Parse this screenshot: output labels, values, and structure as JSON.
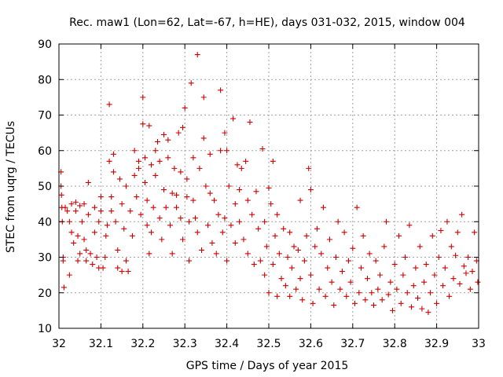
{
  "chart_data": {
    "type": "scatter",
    "title": "Rec. maw1 (Lon=62, Lat=-67, h=HE), days 031-032, 2015, window 004",
    "xlabel": "GPS time / Days of year 2015",
    "ylabel": "STEC from uqrg / TECUs",
    "xlim": [
      32,
      33
    ],
    "ylim": [
      10,
      90
    ],
    "xticks": [
      "32",
      "32.1",
      "32.2",
      "32.3",
      "32.4",
      "32.5",
      "32.6",
      "32.7",
      "32.8",
      "32.9",
      "33"
    ],
    "yticks": [
      "10",
      "20",
      "30",
      "40",
      "50",
      "60",
      "70",
      "80",
      "90"
    ],
    "grid": true,
    "marker": "+",
    "point_color": "#cc0000",
    "series": [
      {
        "name": "STEC",
        "points": [
          [
            32.005,
            54.0
          ],
          [
            32.005,
            50.0
          ],
          [
            32.006,
            47.5
          ],
          [
            32.007,
            44.0
          ],
          [
            32.008,
            40.0
          ],
          [
            32.01,
            30.0
          ],
          [
            32.01,
            29.0
          ],
          [
            32.012,
            21.5
          ],
          [
            32.015,
            44.0
          ],
          [
            32.02,
            43.0
          ],
          [
            32.025,
            40.0
          ],
          [
            32.025,
            25.0
          ],
          [
            32.03,
            45.0
          ],
          [
            32.03,
            37.0
          ],
          [
            32.035,
            34.0
          ],
          [
            32.04,
            45.5
          ],
          [
            32.04,
            43.0
          ],
          [
            32.045,
            36.0
          ],
          [
            32.045,
            29.0
          ],
          [
            32.05,
            44.5
          ],
          [
            32.05,
            31.0
          ],
          [
            32.055,
            40.0
          ],
          [
            32.06,
            45.0
          ],
          [
            32.06,
            35.0
          ],
          [
            32.065,
            32.0
          ],
          [
            32.065,
            29.0
          ],
          [
            32.07,
            51.0
          ],
          [
            32.07,
            42.0
          ],
          [
            32.075,
            31.0
          ],
          [
            32.08,
            28.0
          ],
          [
            32.085,
            44.0
          ],
          [
            32.085,
            37.0
          ],
          [
            32.09,
            30.0
          ],
          [
            32.095,
            40.0
          ],
          [
            32.095,
            27.0
          ],
          [
            32.1,
            47.0
          ],
          [
            32.1,
            43.0
          ],
          [
            32.105,
            27.0
          ],
          [
            32.11,
            30.0
          ],
          [
            32.112,
            36.0
          ],
          [
            32.115,
            39.0
          ],
          [
            32.12,
            73.0
          ],
          [
            32.12,
            57.0
          ],
          [
            32.125,
            47.0
          ],
          [
            32.125,
            43.0
          ],
          [
            32.13,
            59.0
          ],
          [
            32.13,
            54.0
          ],
          [
            32.135,
            40.0
          ],
          [
            32.14,
            32.0
          ],
          [
            32.14,
            27.0
          ],
          [
            32.145,
            52.0
          ],
          [
            32.15,
            45.0
          ],
          [
            32.15,
            26.0
          ],
          [
            32.155,
            38.0
          ],
          [
            32.16,
            50.0
          ],
          [
            32.16,
            29.0
          ],
          [
            32.165,
            26.0
          ],
          [
            32.17,
            43.0
          ],
          [
            32.175,
            36.0
          ],
          [
            32.18,
            60.0
          ],
          [
            32.18,
            53.0
          ],
          [
            32.185,
            47.0
          ],
          [
            32.19,
            57.0
          ],
          [
            32.19,
            55.0
          ],
          [
            32.195,
            42.0
          ],
          [
            32.2,
            67.5
          ],
          [
            32.2,
            75.0
          ],
          [
            32.205,
            58.0
          ],
          [
            32.205,
            51.0
          ],
          [
            32.21,
            46.0
          ],
          [
            32.21,
            39.0
          ],
          [
            32.215,
            67.0
          ],
          [
            32.215,
            31.0
          ],
          [
            32.22,
            56.0
          ],
          [
            32.22,
            37.0
          ],
          [
            32.225,
            44.0
          ],
          [
            32.23,
            60.0
          ],
          [
            32.23,
            53.0
          ],
          [
            32.235,
            62.5
          ],
          [
            32.24,
            57.0
          ],
          [
            32.24,
            41.0
          ],
          [
            32.245,
            35.0
          ],
          [
            32.25,
            64.5
          ],
          [
            32.25,
            49.0
          ],
          [
            32.255,
            44.0
          ],
          [
            32.26,
            63.0
          ],
          [
            32.26,
            58.0
          ],
          [
            32.265,
            39.0
          ],
          [
            32.27,
            48.0
          ],
          [
            32.27,
            31.0
          ],
          [
            32.275,
            55.0
          ],
          [
            32.28,
            47.5
          ],
          [
            32.28,
            44.0
          ],
          [
            32.285,
            65.0
          ],
          [
            32.29,
            54.0
          ],
          [
            32.29,
            41.0
          ],
          [
            32.295,
            66.5
          ],
          [
            32.295,
            35.0
          ],
          [
            32.3,
            72.0
          ],
          [
            32.305,
            52.0
          ],
          [
            32.305,
            47.0
          ],
          [
            32.31,
            40.0
          ],
          [
            32.31,
            29.0
          ],
          [
            32.315,
            79.0
          ],
          [
            32.32,
            58.0
          ],
          [
            32.32,
            46.0
          ],
          [
            32.325,
            41.0
          ],
          [
            32.33,
            87.0
          ],
          [
            32.33,
            37.0
          ],
          [
            32.335,
            55.0
          ],
          [
            32.34,
            32.0
          ],
          [
            32.345,
            75.0
          ],
          [
            32.345,
            63.5
          ],
          [
            32.35,
            50.0
          ],
          [
            32.355,
            39.0
          ],
          [
            32.36,
            59.0
          ],
          [
            32.36,
            48.0
          ],
          [
            32.365,
            34.0
          ],
          [
            32.37,
            46.0
          ],
          [
            32.375,
            31.0
          ],
          [
            32.38,
            42.0
          ],
          [
            32.385,
            77.0
          ],
          [
            32.385,
            60.0
          ],
          [
            32.39,
            37.0
          ],
          [
            32.395,
            65.0
          ],
          [
            32.395,
            41.0
          ],
          [
            32.4,
            60.0
          ],
          [
            32.4,
            29.0
          ],
          [
            32.405,
            50.0
          ],
          [
            32.41,
            39.0
          ],
          [
            32.415,
            69.0
          ],
          [
            32.42,
            45.0
          ],
          [
            32.42,
            34.0
          ],
          [
            32.425,
            56.0
          ],
          [
            32.43,
            49.0
          ],
          [
            32.43,
            40.0
          ],
          [
            32.435,
            55.0
          ],
          [
            32.44,
            35.0
          ],
          [
            32.445,
            57.0
          ],
          [
            32.45,
            46.0
          ],
          [
            32.45,
            31.0
          ],
          [
            32.455,
            68.0
          ],
          [
            32.46,
            42.0
          ],
          [
            32.465,
            28.0
          ],
          [
            32.47,
            48.5
          ],
          [
            32.475,
            38.0
          ],
          [
            32.48,
            29.0
          ],
          [
            32.485,
            60.5
          ],
          [
            32.49,
            40.0
          ],
          [
            32.49,
            25.0
          ],
          [
            32.495,
            33.0
          ],
          [
            32.5,
            49.5
          ],
          [
            32.5,
            20.0
          ],
          [
            32.505,
            45.0
          ],
          [
            32.51,
            57.0
          ],
          [
            32.51,
            28.0
          ],
          [
            32.515,
            36.0
          ],
          [
            32.52,
            42.0
          ],
          [
            32.52,
            19.0
          ],
          [
            32.525,
            31.0
          ],
          [
            32.53,
            24.0
          ],
          [
            32.535,
            38.0
          ],
          [
            32.54,
            22.0
          ],
          [
            32.545,
            30.0
          ],
          [
            32.55,
            37.0
          ],
          [
            32.55,
            19.0
          ],
          [
            32.555,
            27.0
          ],
          [
            32.56,
            33.0
          ],
          [
            32.565,
            21.0
          ],
          [
            32.57,
            32.0
          ],
          [
            32.575,
            46.0
          ],
          [
            32.575,
            24.0
          ],
          [
            32.58,
            18.0
          ],
          [
            32.585,
            29.0
          ],
          [
            32.59,
            36.0
          ],
          [
            32.595,
            55.0
          ],
          [
            32.6,
            49.0
          ],
          [
            32.6,
            25.0
          ],
          [
            32.605,
            17.0
          ],
          [
            32.61,
            33.0
          ],
          [
            32.615,
            38.0
          ],
          [
            32.62,
            21.0
          ],
          [
            32.625,
            31.0
          ],
          [
            32.63,
            44.0
          ],
          [
            32.635,
            19.0
          ],
          [
            32.64,
            27.0
          ],
          [
            32.645,
            35.0
          ],
          [
            32.65,
            23.0
          ],
          [
            32.655,
            16.5
          ],
          [
            32.66,
            30.0
          ],
          [
            32.665,
            40.0
          ],
          [
            32.67,
            21.0
          ],
          [
            32.675,
            26.0
          ],
          [
            32.68,
            37.0
          ],
          [
            32.685,
            19.0
          ],
          [
            32.69,
            29.0
          ],
          [
            32.695,
            23.0
          ],
          [
            32.7,
            32.5
          ],
          [
            32.705,
            17.0
          ],
          [
            32.71,
            44.0
          ],
          [
            32.715,
            20.0
          ],
          [
            32.72,
            27.0
          ],
          [
            32.725,
            36.0
          ],
          [
            32.73,
            18.0
          ],
          [
            32.735,
            24.0
          ],
          [
            32.74,
            31.0
          ],
          [
            32.745,
            20.0
          ],
          [
            32.75,
            16.5
          ],
          [
            32.755,
            29.0
          ],
          [
            32.76,
            21.0
          ],
          [
            32.765,
            25.0
          ],
          [
            32.77,
            18.0
          ],
          [
            32.775,
            33.0
          ],
          [
            32.78,
            40.0
          ],
          [
            32.785,
            19.5
          ],
          [
            32.79,
            23.0
          ],
          [
            32.795,
            15.0
          ],
          [
            32.8,
            28.0
          ],
          [
            32.805,
            21.0
          ],
          [
            32.81,
            36.0
          ],
          [
            32.815,
            17.0
          ],
          [
            32.82,
            25.0
          ],
          [
            32.825,
            30.0
          ],
          [
            32.83,
            20.0
          ],
          [
            32.835,
            39.0
          ],
          [
            32.84,
            16.0
          ],
          [
            32.845,
            22.0
          ],
          [
            32.85,
            27.0
          ],
          [
            32.855,
            18.5
          ],
          [
            32.86,
            33.0
          ],
          [
            32.865,
            15.5
          ],
          [
            32.87,
            23.0
          ],
          [
            32.875,
            28.0
          ],
          [
            32.88,
            14.5
          ],
          [
            32.885,
            20.0
          ],
          [
            32.89,
            36.0
          ],
          [
            32.895,
            25.0
          ],
          [
            32.9,
            17.0
          ],
          [
            32.905,
            30.0
          ],
          [
            32.91,
            37.5
          ],
          [
            32.915,
            22.0
          ],
          [
            32.92,
            27.0
          ],
          [
            32.925,
            40.0
          ],
          [
            32.93,
            19.0
          ],
          [
            32.935,
            33.0
          ],
          [
            32.94,
            24.0
          ],
          [
            32.945,
            30.5
          ],
          [
            32.95,
            37.0
          ],
          [
            32.955,
            22.5
          ],
          [
            32.96,
            42.0
          ],
          [
            32.965,
            27.5
          ],
          [
            32.97,
            25.5
          ],
          [
            32.975,
            30.0
          ],
          [
            32.98,
            21.0
          ],
          [
            32.985,
            26.0
          ],
          [
            32.99,
            37.0
          ],
          [
            32.995,
            29.0
          ],
          [
            32.998,
            23.0
          ]
        ]
      }
    ]
  }
}
